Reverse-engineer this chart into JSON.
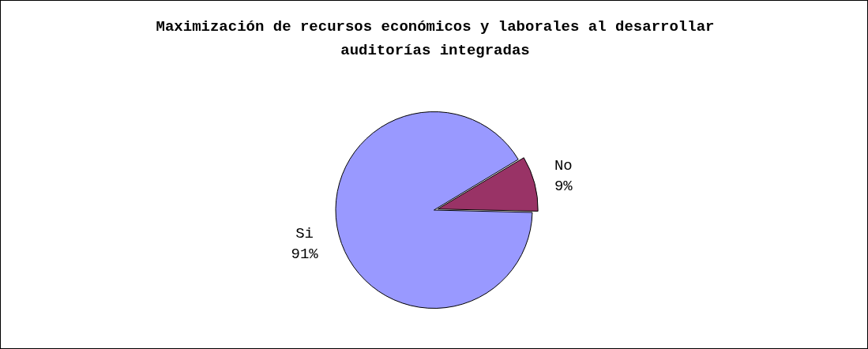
{
  "chart_data": {
    "type": "pie",
    "title": "Maximización de recursos económicos y laborales al desarrollar auditorías integradas",
    "categories": [
      "Si",
      "No"
    ],
    "values": [
      91,
      9
    ],
    "colors": [
      "#9999ff",
      "#993366"
    ],
    "value_labels": [
      "91%",
      "9%"
    ],
    "legend": false
  }
}
